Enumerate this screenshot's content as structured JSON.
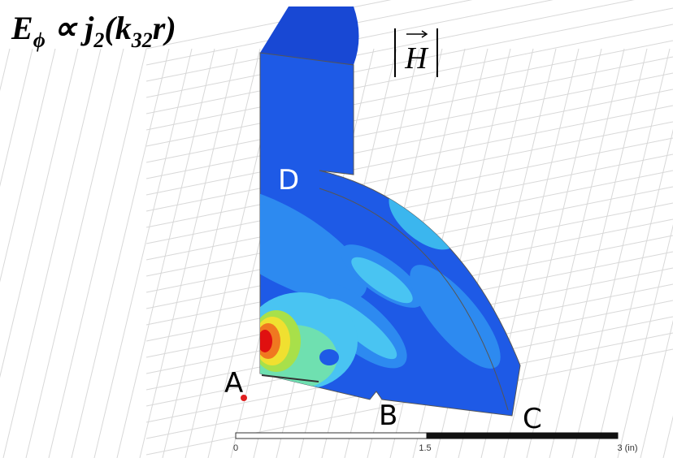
{
  "formula": [
    {
      "text": "E",
      "sub": "ϕ"
    },
    {
      "text": " ∝ j",
      "sub": "2"
    },
    {
      "text": "(k",
      "sub": "32"
    },
    {
      "text": "r)"
    }
  ],
  "field_label": "H",
  "points": {
    "A": "A",
    "B": "B",
    "C": "C",
    "D": "D"
  },
  "scale": {
    "ticks": [
      "0",
      "1.5",
      "3 (in)"
    ]
  }
}
